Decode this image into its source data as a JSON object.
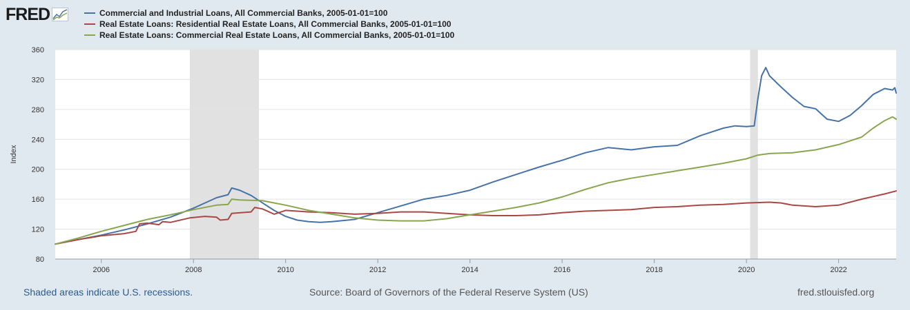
{
  "logo": {
    "text": "FRED"
  },
  "legend": [
    {
      "label": "Commercial and Industrial Loans, All Commercial Banks, 2005-01-01=100",
      "color": "#4572a7"
    },
    {
      "label": "Real Estate Loans: Residential Real Estate Loans, All Commercial Banks, 2005-01-01=100",
      "color": "#aa4643"
    },
    {
      "label": "Real Estate Loans: Commercial Real Estate Loans, All Commercial Banks, 2005-01-01=100",
      "color": "#89a54e"
    }
  ],
  "footer": {
    "note": "Shaded areas indicate U.S. recessions.",
    "source": "Source: Board of Governors of the Federal Reserve System (US)",
    "url": "fred.stlouisfed.org"
  },
  "chart_data": {
    "type": "line",
    "title": "",
    "xlabel": "",
    "ylabel": "Index",
    "xlim": [
      2005.0,
      2023.25
    ],
    "ylim": [
      80,
      360
    ],
    "yticks": [
      80,
      120,
      160,
      200,
      240,
      280,
      320,
      360
    ],
    "xticks": [
      2006,
      2008,
      2010,
      2012,
      2014,
      2016,
      2018,
      2020,
      2022
    ],
    "grid": true,
    "recessions": [
      [
        2007.92,
        2009.42
      ],
      [
        2020.08,
        2020.25
      ]
    ],
    "series": [
      {
        "name": "Commercial and Industrial Loans, All Commercial Banks, 2005-01-01=100",
        "color": "#4572a7",
        "points": [
          [
            2005.0,
            100
          ],
          [
            2005.5,
            106
          ],
          [
            2006.0,
            112
          ],
          [
            2006.5,
            119
          ],
          [
            2007.0,
            127
          ],
          [
            2007.5,
            136
          ],
          [
            2008.0,
            148
          ],
          [
            2008.25,
            155
          ],
          [
            2008.5,
            162
          ],
          [
            2008.75,
            166
          ],
          [
            2008.83,
            175
          ],
          [
            2009.0,
            172
          ],
          [
            2009.25,
            165
          ],
          [
            2009.5,
            155
          ],
          [
            2009.75,
            145
          ],
          [
            2010.0,
            137
          ],
          [
            2010.25,
            132
          ],
          [
            2010.5,
            130
          ],
          [
            2010.75,
            129
          ],
          [
            2011.0,
            130
          ],
          [
            2011.5,
            133
          ],
          [
            2012.0,
            142
          ],
          [
            2012.5,
            151
          ],
          [
            2013.0,
            160
          ],
          [
            2013.5,
            165
          ],
          [
            2014.0,
            172
          ],
          [
            2014.5,
            183
          ],
          [
            2015.0,
            193
          ],
          [
            2015.5,
            203
          ],
          [
            2016.0,
            212
          ],
          [
            2016.5,
            222
          ],
          [
            2017.0,
            229
          ],
          [
            2017.5,
            226
          ],
          [
            2018.0,
            230
          ],
          [
            2018.5,
            232
          ],
          [
            2019.0,
            245
          ],
          [
            2019.5,
            255
          ],
          [
            2019.75,
            258
          ],
          [
            2020.0,
            257
          ],
          [
            2020.17,
            258
          ],
          [
            2020.25,
            295
          ],
          [
            2020.33,
            325
          ],
          [
            2020.42,
            336
          ],
          [
            2020.5,
            325
          ],
          [
            2020.75,
            310
          ],
          [
            2021.0,
            296
          ],
          [
            2021.25,
            284
          ],
          [
            2021.5,
            281
          ],
          [
            2021.75,
            267
          ],
          [
            2022.0,
            264
          ],
          [
            2022.25,
            272
          ],
          [
            2022.5,
            285
          ],
          [
            2022.75,
            300
          ],
          [
            2023.0,
            308
          ],
          [
            2023.17,
            306
          ],
          [
            2023.22,
            309
          ],
          [
            2023.25,
            302
          ]
        ]
      },
      {
        "name": "Real Estate Loans: Residential Real Estate Loans, All Commercial Banks, 2005-01-01=100",
        "color": "#aa4643",
        "points": [
          [
            2005.0,
            100
          ],
          [
            2005.5,
            106
          ],
          [
            2006.0,
            111
          ],
          [
            2006.5,
            114
          ],
          [
            2006.75,
            117
          ],
          [
            2006.83,
            127
          ],
          [
            2007.0,
            128
          ],
          [
            2007.25,
            126
          ],
          [
            2007.33,
            130
          ],
          [
            2007.5,
            129
          ],
          [
            2007.92,
            135
          ],
          [
            2008.25,
            137
          ],
          [
            2008.5,
            136
          ],
          [
            2008.58,
            132
          ],
          [
            2008.75,
            133
          ],
          [
            2008.83,
            141
          ],
          [
            2009.25,
            143
          ],
          [
            2009.33,
            149
          ],
          [
            2009.5,
            147
          ],
          [
            2009.75,
            140
          ],
          [
            2010.0,
            145
          ],
          [
            2010.5,
            143
          ],
          [
            2011.0,
            142
          ],
          [
            2011.5,
            140
          ],
          [
            2012.0,
            141
          ],
          [
            2012.5,
            143
          ],
          [
            2013.0,
            143
          ],
          [
            2013.5,
            141
          ],
          [
            2014.0,
            139
          ],
          [
            2014.5,
            138
          ],
          [
            2015.0,
            138
          ],
          [
            2015.5,
            139
          ],
          [
            2016.0,
            142
          ],
          [
            2016.5,
            144
          ],
          [
            2017.0,
            145
          ],
          [
            2017.5,
            146
          ],
          [
            2018.0,
            149
          ],
          [
            2018.5,
            150
          ],
          [
            2019.0,
            152
          ],
          [
            2019.5,
            153
          ],
          [
            2020.0,
            155
          ],
          [
            2020.5,
            156
          ],
          [
            2020.75,
            155
          ],
          [
            2021.0,
            152
          ],
          [
            2021.5,
            150
          ],
          [
            2022.0,
            152
          ],
          [
            2022.5,
            160
          ],
          [
            2023.0,
            167
          ],
          [
            2023.25,
            171
          ]
        ]
      },
      {
        "name": "Real Estate Loans: Commercial Real Estate Loans, All Commercial Banks, 2005-01-01=100",
        "color": "#89a54e",
        "points": [
          [
            2005.0,
            100
          ],
          [
            2005.5,
            108
          ],
          [
            2006.0,
            117
          ],
          [
            2006.5,
            125
          ],
          [
            2007.0,
            133
          ],
          [
            2007.5,
            139
          ],
          [
            2008.0,
            146
          ],
          [
            2008.5,
            152
          ],
          [
            2008.75,
            153
          ],
          [
            2008.83,
            160
          ],
          [
            2009.0,
            159
          ],
          [
            2009.5,
            158
          ],
          [
            2010.0,
            152
          ],
          [
            2010.5,
            145
          ],
          [
            2011.0,
            140
          ],
          [
            2011.5,
            135
          ],
          [
            2012.0,
            132
          ],
          [
            2012.5,
            131
          ],
          [
            2013.0,
            131
          ],
          [
            2013.5,
            134
          ],
          [
            2014.0,
            139
          ],
          [
            2014.5,
            144
          ],
          [
            2015.0,
            149
          ],
          [
            2015.5,
            155
          ],
          [
            2016.0,
            163
          ],
          [
            2016.5,
            173
          ],
          [
            2017.0,
            182
          ],
          [
            2017.5,
            188
          ],
          [
            2018.0,
            193
          ],
          [
            2018.5,
            198
          ],
          [
            2019.0,
            203
          ],
          [
            2019.5,
            208
          ],
          [
            2020.0,
            214
          ],
          [
            2020.25,
            219
          ],
          [
            2020.5,
            221
          ],
          [
            2021.0,
            222
          ],
          [
            2021.5,
            226
          ],
          [
            2022.0,
            233
          ],
          [
            2022.5,
            243
          ],
          [
            2022.75,
            255
          ],
          [
            2023.0,
            265
          ],
          [
            2023.17,
            270
          ],
          [
            2023.25,
            267
          ]
        ]
      }
    ]
  }
}
